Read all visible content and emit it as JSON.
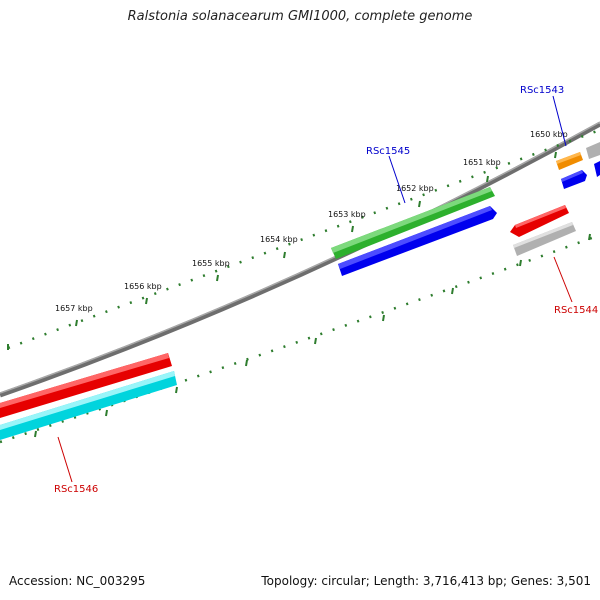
{
  "title": "Ralstonia solanacearum GMI1000, complete genome",
  "footer": {
    "accession": "Accession: NC_003295",
    "stats": "Topology: circular; Length: 3,716,413 bp; Genes: 3,501"
  },
  "ticks": [
    {
      "label": "1650 kbp"
    },
    {
      "label": "1651 kbp"
    },
    {
      "label": "1652 kbp"
    },
    {
      "label": "1653 kbp"
    },
    {
      "label": "1654 kbp"
    },
    {
      "label": "1655 kbp"
    },
    {
      "label": "1656 kbp"
    },
    {
      "label": "1657 kbp"
    }
  ],
  "gene_labels": [
    {
      "name": "RSc1543",
      "color": "#0000cc"
    },
    {
      "name": "RSc1545",
      "color": "#0000cc"
    },
    {
      "name": "RSc1544",
      "color": "#cc0000"
    },
    {
      "name": "RSc1546",
      "color": "#cc0000"
    }
  ],
  "colors": {
    "backbone": "#808080",
    "tick": "#2e7d2e",
    "red_gene": "#e60000",
    "cyan_gene": "#00e5ee",
    "green_gene": "#3cbf3c",
    "blue_gene": "#0000ee",
    "gray_gene": "#b0b0b0",
    "orange_gene": "#f08c00"
  }
}
